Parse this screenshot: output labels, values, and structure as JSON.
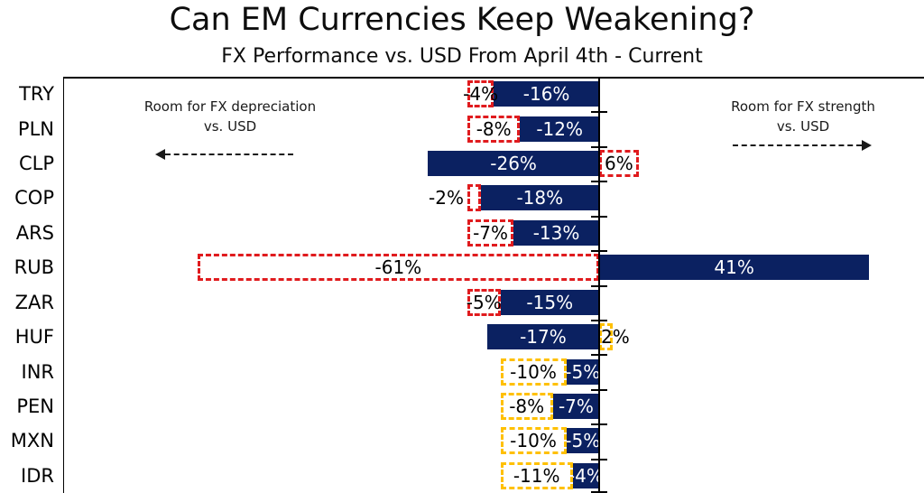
{
  "title": "Can EM Currencies Keep Weakening?",
  "subtitle": "FX Performance vs. USD From April 4th - Current",
  "annotations": {
    "left": {
      "line1": "Room for FX depreciation",
      "line2": "vs. USD",
      "arrow_direction": "left"
    },
    "right": {
      "line1": "Room for FX strength",
      "line2": "vs. USD",
      "arrow_direction": "right"
    }
  },
  "colors": {
    "bar": "#0b2161",
    "red_box": "#e01b1e",
    "yellow_box": "#ffc000",
    "bar_label_text": "#ffffff",
    "box_label_text": "#000000",
    "axis": "#000000"
  },
  "chart_data": {
    "type": "bar",
    "orientation": "horizontal",
    "title": "Can EM Currencies Keep Weakening?",
    "subtitle": "FX Performance vs. USD From April 4th - Current",
    "categories": [
      "TRY",
      "PLN",
      "CLP",
      "COP",
      "ARS",
      "RUB",
      "ZAR",
      "HUF",
      "INR",
      "PEN",
      "MXN",
      "IDR"
    ],
    "series": [
      {
        "name": "FX performance vs. USD since April 4th (solid navy bar)",
        "values": [
          -16,
          -12,
          -26,
          -18,
          -13,
          41,
          -15,
          -17,
          -5,
          -7,
          -5,
          -4
        ],
        "labels": [
          "-16%",
          "-12%",
          "-26%",
          "-18%",
          "-13%",
          "41%",
          "-15%",
          "-17%",
          "-5%",
          "-7%",
          "-5%",
          "-4%"
        ]
      },
      {
        "name": "Remaining room vs. USD (dashed outline box)",
        "values": [
          -4,
          -8,
          6,
          -2,
          -7,
          -61,
          -5,
          2,
          -10,
          -8,
          -10,
          -11
        ],
        "labels": [
          "-4%",
          "-8%",
          "6%",
          "-2%",
          "-7%",
          "-61%",
          "-5%",
          "2%",
          "-10%",
          "-8%",
          "-10%",
          "-11%"
        ],
        "box_colors": [
          "red",
          "red",
          "red",
          "red",
          "red",
          "red",
          "red",
          "yellow",
          "yellow",
          "yellow",
          "yellow",
          "yellow"
        ]
      }
    ],
    "x_axis": {
      "zero_line": true,
      "unit": "%",
      "approx_range_pct": [
        -81,
        49
      ],
      "tick_labels_shown": false
    },
    "legend": "none",
    "grid": "off"
  }
}
